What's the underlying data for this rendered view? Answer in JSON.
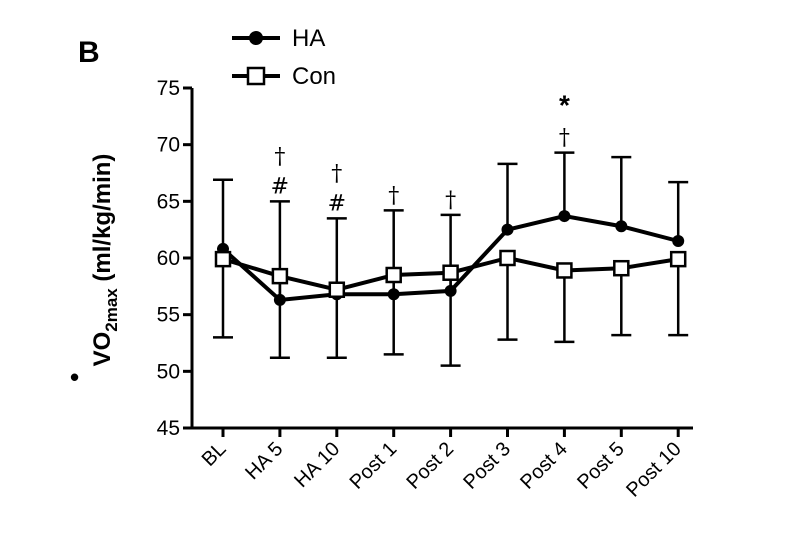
{
  "panel_label": "B",
  "chart_data": {
    "type": "line",
    "categories": [
      "BL",
      "HA 5",
      "HA 10",
      "Post 1",
      "Post 2",
      "Post 3",
      "Post 4",
      "Post 5",
      "Post 10"
    ],
    "ylim": [
      45,
      75
    ],
    "yticks": [
      45,
      50,
      55,
      60,
      65,
      70,
      75
    ],
    "ylabel": {
      "main": "VO",
      "sub": "2max",
      "units": " (ml/kg/min)",
      "dot": "•"
    },
    "xlabel": "",
    "grid": false,
    "legend": {
      "placement": "top-left",
      "entries": [
        "HA",
        "Con"
      ]
    },
    "series": [
      {
        "name": "HA",
        "marker": "filled-circle",
        "color": "#000000",
        "values": [
          60.8,
          56.3,
          56.8,
          56.8,
          57.1,
          62.5,
          63.7,
          62.8,
          61.5
        ],
        "error_upper": [
          66.9,
          65.0,
          63.5,
          64.2,
          63.8,
          68.3,
          69.3,
          68.9,
          66.7
        ],
        "error_lower": [
          53.0,
          51.2,
          51.2,
          51.5,
          50.5,
          52.8,
          52.6,
          53.2,
          53.2
        ]
      },
      {
        "name": "Con",
        "marker": "open-square",
        "color": "#000000",
        "values": [
          59.9,
          58.4,
          57.2,
          58.5,
          58.7,
          60.0,
          58.9,
          59.1,
          59.9
        ],
        "error_upper": [
          66.9,
          65.0,
          63.5,
          64.2,
          63.8,
          68.3,
          69.3,
          68.9,
          66.7
        ],
        "error_lower": [
          53.0,
          51.2,
          51.2,
          51.5,
          50.5,
          52.8,
          52.6,
          53.2,
          53.2
        ]
      }
    ],
    "annotations": [
      {
        "category": "HA 5",
        "symbols": [
          "†",
          "#"
        ]
      },
      {
        "category": "HA 10",
        "symbols": [
          "†",
          "#"
        ]
      },
      {
        "category": "Post 1",
        "symbols": [
          "†"
        ]
      },
      {
        "category": "Post 2",
        "symbols": [
          "†"
        ]
      },
      {
        "category": "Post 4",
        "symbols": [
          "*",
          "†"
        ]
      }
    ]
  }
}
